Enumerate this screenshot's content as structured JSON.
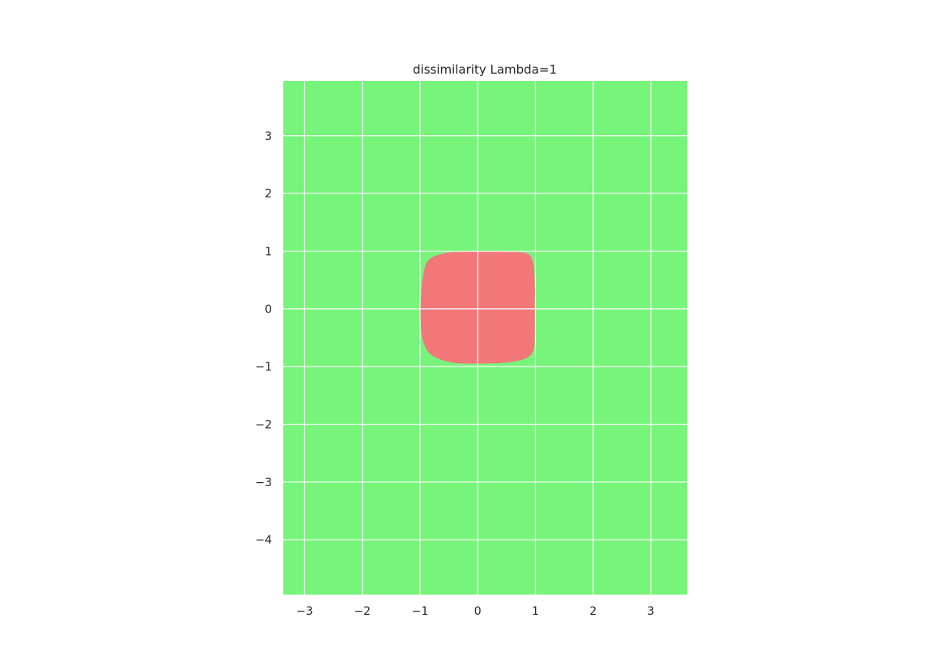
{
  "chart_data": {
    "type": "heatmap",
    "title": "dissimilarity Lambda=1",
    "xlabel": "",
    "ylabel": "",
    "xlim": [
      -3.37,
      3.63
    ],
    "ylim": [
      -4.95,
      3.95
    ],
    "x_ticks": [
      -3,
      -2,
      -1,
      0,
      1,
      2,
      3
    ],
    "y_ticks": [
      -4,
      -3,
      -2,
      -1,
      0,
      1,
      2,
      3
    ],
    "x_tick_labels": [
      "−3",
      "−2",
      "−1",
      "0",
      "1",
      "2",
      "3"
    ],
    "y_tick_labels": [
      "−4",
      "−3",
      "−2",
      "−1",
      "0",
      "1",
      "2",
      "3"
    ],
    "grid": true,
    "background_class": {
      "color": "#77f47a"
    },
    "region_class": {
      "color": "#f27779",
      "boundary": [
        [
          0.0,
          0.99
        ],
        [
          0.5,
          0.99
        ],
        [
          0.85,
          0.96
        ],
        [
          0.96,
          0.8
        ],
        [
          0.99,
          0.4
        ],
        [
          0.99,
          0.0
        ],
        [
          0.99,
          -0.4
        ],
        [
          0.97,
          -0.7
        ],
        [
          0.85,
          -0.85
        ],
        [
          0.5,
          -0.93
        ],
        [
          0.0,
          -0.95
        ],
        [
          -0.45,
          -0.93
        ],
        [
          -0.8,
          -0.8
        ],
        [
          -0.95,
          -0.55
        ],
        [
          -0.99,
          -0.2
        ],
        [
          -0.99,
          0.1
        ],
        [
          -0.95,
          0.55
        ],
        [
          -0.85,
          0.85
        ],
        [
          -0.55,
          0.97
        ],
        [
          -0.25,
          0.99
        ]
      ]
    }
  }
}
